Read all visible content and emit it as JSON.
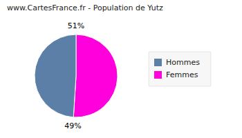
{
  "chart_data": {
    "type": "pie",
    "title": "www.CartesFrance.fr - Population de Yutz",
    "categories": [
      "Femmes",
      "Hommes"
    ],
    "values": [
      51,
      49
    ],
    "value_labels": [
      "51%",
      "49%"
    ],
    "colors": [
      "#FF00DD",
      "#5B7FA6"
    ],
    "data_labels": true,
    "legend": "right"
  }
}
